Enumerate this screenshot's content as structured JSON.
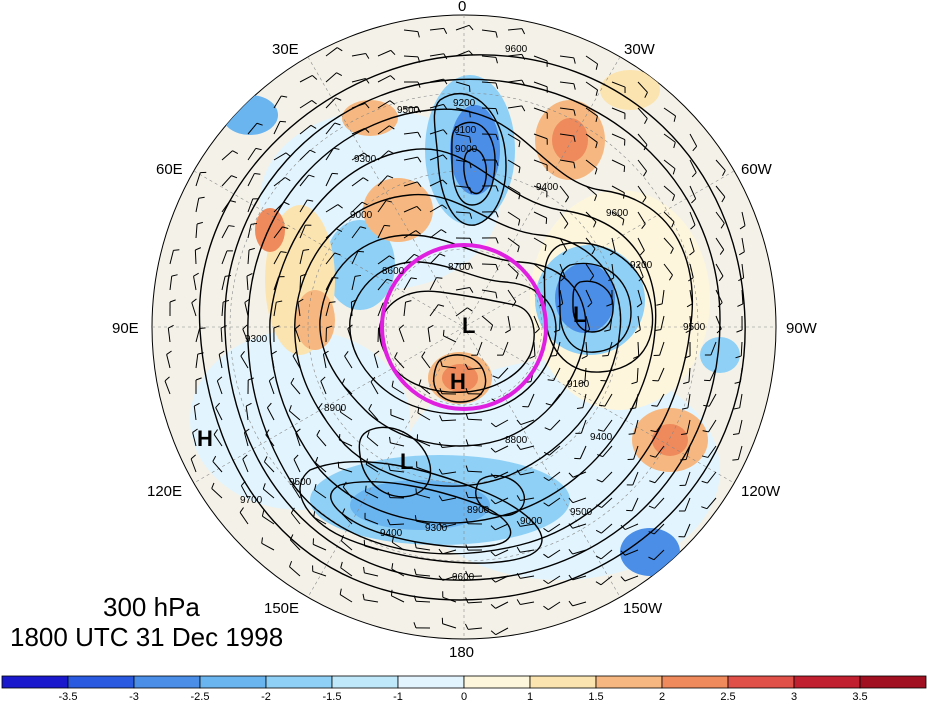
{
  "captions": {
    "level": "300 hPa",
    "time": "1800 UTC 31 Dec 1998"
  },
  "longitude_labels": {
    "lon_0": "0",
    "lon_30w": "30W",
    "lon_60w": "60W",
    "lon_90w": "90W",
    "lon_120w": "120W",
    "lon_150w": "150W",
    "lon_180": "180",
    "lon_150e": "150E",
    "lon_120e": "120E",
    "lon_90e": "90E",
    "lon_60e": "60E",
    "lon_30e": "30E"
  },
  "pressure_centers": [
    {
      "name": "low-center-pole",
      "label": "L"
    },
    {
      "name": "high-center-pole",
      "label": "H"
    },
    {
      "name": "low-center-canada",
      "label": "L"
    },
    {
      "name": "low-center-siberia",
      "label": "L"
    },
    {
      "name": "high-center-asia",
      "label": "H"
    }
  ],
  "contour_labels": [
    "9600",
    "9500",
    "9200",
    "9100",
    "9000",
    "8700",
    "8600",
    "9300",
    "9400",
    "9200",
    "9600",
    "9500",
    "9400",
    "9100",
    "8900",
    "9000",
    "9300",
    "9400",
    "9500",
    "9700",
    "8800",
    "9600",
    "9500",
    "8900",
    "9000",
    "9300"
  ],
  "colorbar": {
    "ticks": [
      "-3.5",
      "-3",
      "-2.5",
      "-2",
      "-1.5",
      "-1",
      "0",
      "1",
      "1.5",
      "2",
      "2.5",
      "3",
      "3.5"
    ],
    "colors": [
      "#1a1acc",
      "#2a5ae0",
      "#4a8ee8",
      "#6ab4f0",
      "#8fd0f6",
      "#c0e8fb",
      "#e2f4fd",
      "#fdf6dd",
      "#fbe4b0",
      "#f6b880",
      "#ef8a5c",
      "#e05048",
      "#c02030",
      "#a01020"
    ]
  },
  "highlight_ring": {
    "color": "#e020e0"
  }
}
